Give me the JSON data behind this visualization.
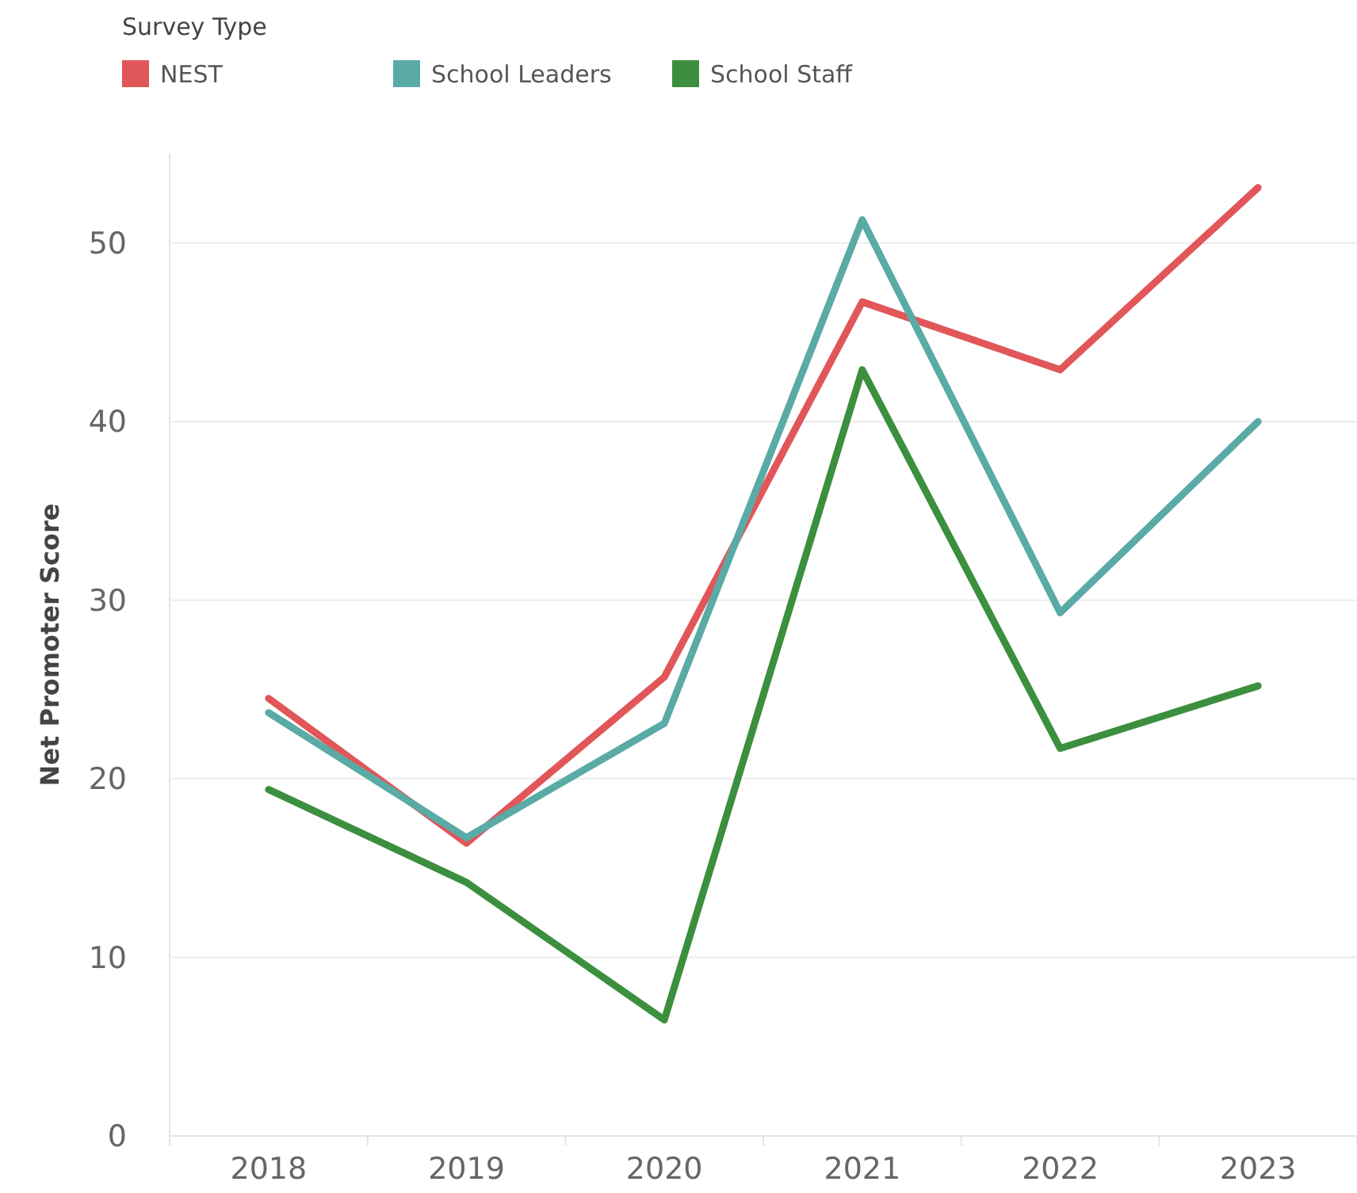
{
  "chart_data": {
    "type": "line",
    "ylabel": "Net Promoter Score",
    "legend_title": "Survey Type",
    "legend": "top left",
    "grid": "y",
    "categories": [
      "2018",
      "2019",
      "2020",
      "2021",
      "2022",
      "2023"
    ],
    "ylim": [
      0,
      55
    ],
    "yticks": [
      0,
      10,
      20,
      30,
      40,
      50
    ],
    "series": [
      {
        "name": "NEST",
        "color": "#e15759",
        "values": [
          24.5,
          16.4,
          25.7,
          46.7,
          42.9,
          53.1
        ]
      },
      {
        "name": "School Leaders",
        "color": "#5aaaa6",
        "values": [
          23.7,
          16.7,
          23.1,
          51.3,
          29.3,
          40.0
        ]
      },
      {
        "name": "School Staff",
        "color": "#3b8f3e",
        "values": [
          19.4,
          14.2,
          6.5,
          42.9,
          21.7,
          25.2
        ]
      }
    ]
  }
}
